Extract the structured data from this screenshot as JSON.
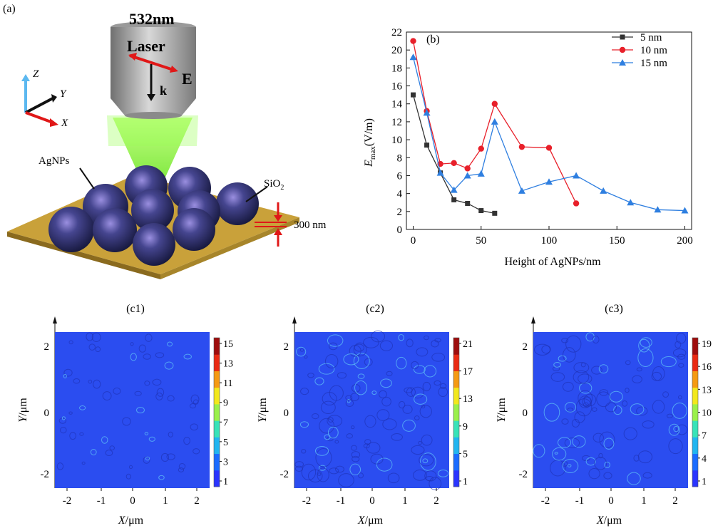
{
  "panel_a": {
    "label": "(a)",
    "laser_wavelength": "532nm",
    "laser_text": "Laser",
    "e_label": "E",
    "k_label": "k",
    "axis_z": "Z",
    "axis_y": "Y",
    "axis_x": "X",
    "agnps_label": "AgNPs",
    "sio2_label": "SiO",
    "sio2_sub": "2",
    "thickness_label": "300 nm"
  },
  "chart_data": [
    {
      "type": "line",
      "panel_label": "(b)",
      "ylabel_main": "E",
      "ylabel_sub": "max",
      "ylabel_unit": "(V/m)",
      "xlabel": "Height of AgNPs/nm",
      "xlim": [
        -5,
        205
      ],
      "ylim": [
        0,
        22
      ],
      "xticks": [
        0,
        50,
        100,
        150,
        200
      ],
      "yticks": [
        0,
        2,
        4,
        6,
        8,
        10,
        12,
        14,
        16,
        18,
        20,
        22
      ],
      "legend_position": "top-right",
      "series": [
        {
          "name": "5 nm",
          "color": "#333333",
          "marker": "square",
          "x": [
            0,
            10,
            20,
            30,
            40,
            50,
            60
          ],
          "y": [
            15.0,
            9.4,
            6.3,
            3.3,
            2.9,
            2.1,
            1.8
          ]
        },
        {
          "name": "10 nm",
          "color": "#e8202a",
          "marker": "circle",
          "x": [
            0,
            10,
            20,
            30,
            40,
            50,
            60,
            80,
            100,
            120
          ],
          "y": [
            21.0,
            13.2,
            7.3,
            7.4,
            6.8,
            9.0,
            14.0,
            9.2,
            9.1,
            2.9
          ]
        },
        {
          "name": "15 nm",
          "color": "#2f7fe0",
          "marker": "triangle",
          "x": [
            0,
            10,
            20,
            30,
            40,
            50,
            60,
            80,
            100,
            120,
            140,
            160,
            180,
            200
          ],
          "y": [
            19.2,
            13.0,
            6.3,
            4.4,
            6.0,
            6.2,
            12.0,
            4.3,
            5.3,
            6.0,
            4.3,
            3.0,
            2.2,
            2.1
          ]
        }
      ]
    },
    {
      "type": "heatmap",
      "panel_label": "(c1)",
      "xlabel_var": "X",
      "ylabel_var": "Y",
      "unit": "/μm",
      "xticks": [
        "-2",
        "-1",
        "0",
        "1",
        "2"
      ],
      "yticks": [
        "2",
        "0",
        "-2"
      ],
      "colorbar_ticks": [
        "15",
        "13",
        "11",
        "9",
        "7",
        "5",
        "3",
        "1"
      ]
    },
    {
      "type": "heatmap",
      "panel_label": "(c2)",
      "xlabel_var": "X",
      "ylabel_var": "Y",
      "unit": "/μm",
      "xticks": [
        "-2",
        "-1",
        "0",
        "1",
        "2"
      ],
      "yticks": [
        "2",
        "0",
        "-2"
      ],
      "colorbar_ticks": [
        "21",
        "17",
        "13",
        "9",
        "5",
        "1"
      ]
    },
    {
      "type": "heatmap",
      "panel_label": "(c3)",
      "xlabel_var": "X",
      "ylabel_var": "Y",
      "unit": "/μm",
      "xticks": [
        "-2",
        "-1",
        "0",
        "1",
        "2"
      ],
      "yticks": [
        "2",
        "0",
        "-2"
      ],
      "colorbar_ticks": [
        "19",
        "16",
        "13",
        "10",
        "7",
        "4",
        "1"
      ]
    }
  ],
  "colors": {
    "substrate": "#c9a13a",
    "sphere": "#2c2f6e",
    "beam": "#7dff3a",
    "heatmap_bg": "#2b4df0",
    "arrow_red": "#e01818"
  }
}
